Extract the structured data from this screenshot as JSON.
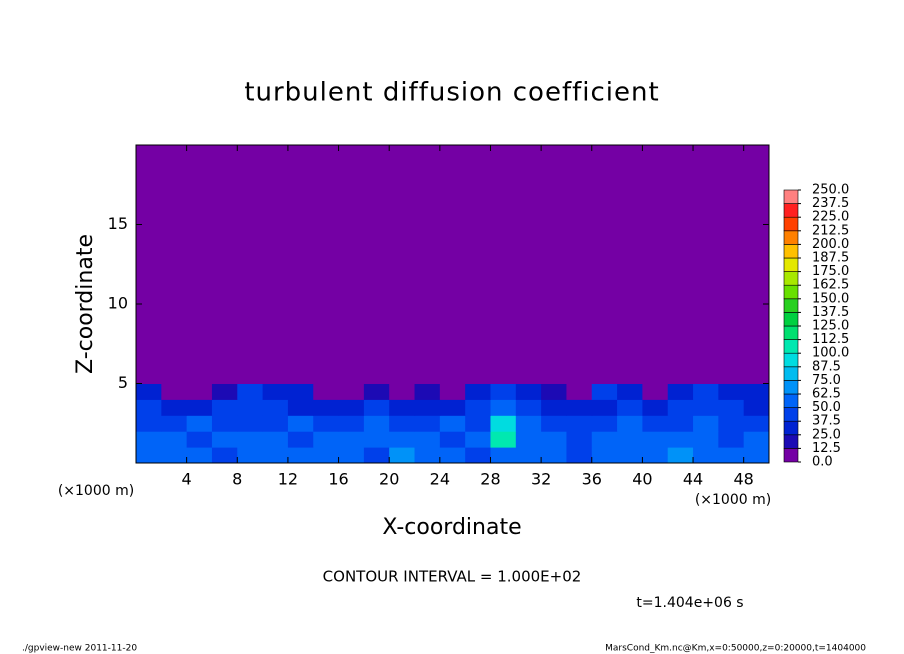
{
  "chart_data": {
    "type": "heatmap",
    "title": "turbulent diffusion coefficient",
    "x_label": "X-coordinate",
    "y_label": "Z-coordinate",
    "x_unit": "(×1000 m)",
    "contour_note": "CONTOUR INTERVAL = 1.000E+02",
    "time_note": "t=1.404e+06 s",
    "footer_left": "./gpview-new  2011-11-20",
    "footer_right": "MarsCond_Km.nc@Km,x=0:50000,z=0:20000,t=1404000",
    "xlim": [
      0,
      50
    ],
    "ylim": [
      0,
      20
    ],
    "xticks": [
      4,
      8,
      12,
      16,
      20,
      24,
      28,
      32,
      36,
      40,
      44,
      48
    ],
    "yticks": [
      5,
      10,
      15
    ],
    "levels": [
      {
        "value": 0,
        "label": "0.0"
      },
      {
        "value": 12.5,
        "label": "12.5"
      },
      {
        "value": 25,
        "label": "25.0"
      },
      {
        "value": 37.5,
        "label": "37.5"
      },
      {
        "value": 50,
        "label": "50.0"
      },
      {
        "value": 62.5,
        "label": "62.5"
      },
      {
        "value": 75,
        "label": "75.0"
      },
      {
        "value": 87.5,
        "label": "87.5"
      },
      {
        "value": 100,
        "label": "100.0"
      },
      {
        "value": 112.5,
        "label": "112.5"
      },
      {
        "value": 125,
        "label": "125.0"
      },
      {
        "value": 137.5,
        "label": "137.5"
      },
      {
        "value": 150,
        "label": "150.0"
      },
      {
        "value": 162.5,
        "label": "162.5"
      },
      {
        "value": 175,
        "label": "175.0"
      },
      {
        "value": 187.5,
        "label": "187.5"
      },
      {
        "value": 200,
        "label": "200.0"
      },
      {
        "value": 212.5,
        "label": "212.5"
      },
      {
        "value": 225,
        "label": "225.0"
      },
      {
        "value": 237.5,
        "label": "237.5"
      },
      {
        "value": 250,
        "label": "250.0"
      }
    ],
    "colors": [
      "#7400a4",
      "#1c0ab4",
      "#0022d2",
      "#0040ea",
      "#0064f8",
      "#0092f8",
      "#00bcf0",
      "#00dce0",
      "#00e8b0",
      "#00e070",
      "#00d040",
      "#28d020",
      "#68e000",
      "#a8e800",
      "#e4e800",
      "#ffc000",
      "#ff8000",
      "#ff4000",
      "#ff2020",
      "#ff8080"
    ],
    "field": {
      "x": [
        1,
        3,
        5,
        7,
        9,
        11,
        13,
        15,
        17,
        19,
        21,
        23,
        25,
        27,
        29,
        31,
        33,
        35,
        37,
        39,
        41,
        43,
        45,
        47,
        49
      ],
      "z": [
        0.5,
        1.5,
        2.5,
        3.5,
        4.5,
        5.5
      ],
      "values": [
        [
          55,
          60,
          50,
          45,
          55,
          60,
          50,
          55,
          50,
          45,
          70,
          55,
          50,
          45,
          60,
          50,
          55,
          45,
          60,
          55,
          50,
          65,
          55,
          50,
          60
        ],
        [
          50,
          55,
          45,
          50,
          55,
          50,
          45,
          50,
          55,
          50,
          60,
          50,
          45,
          50,
          100,
          55,
          50,
          45,
          50,
          55,
          60,
          55,
          50,
          45,
          55
        ],
        [
          45,
          40,
          50,
          45,
          40,
          45,
          50,
          45,
          40,
          50,
          45,
          40,
          50,
          45,
          90,
          50,
          45,
          40,
          45,
          50,
          40,
          45,
          50,
          45,
          40
        ],
        [
          40,
          35,
          30,
          40,
          45,
          40,
          35,
          30,
          35,
          40,
          30,
          35,
          25,
          40,
          60,
          45,
          30,
          25,
          35,
          45,
          30,
          40,
          45,
          40,
          35
        ],
        [
          30,
          10,
          5,
          20,
          40,
          35,
          30,
          10,
          5,
          15,
          5,
          20,
          5,
          30,
          40,
          35,
          20,
          10,
          40,
          35,
          10,
          30,
          40,
          35,
          30
        ],
        [
          0,
          0,
          0,
          0,
          0,
          0,
          0,
          0,
          0,
          0,
          0,
          0,
          0,
          0,
          5,
          0,
          0,
          0,
          0,
          0,
          0,
          0,
          0,
          0,
          0
        ]
      ]
    }
  }
}
